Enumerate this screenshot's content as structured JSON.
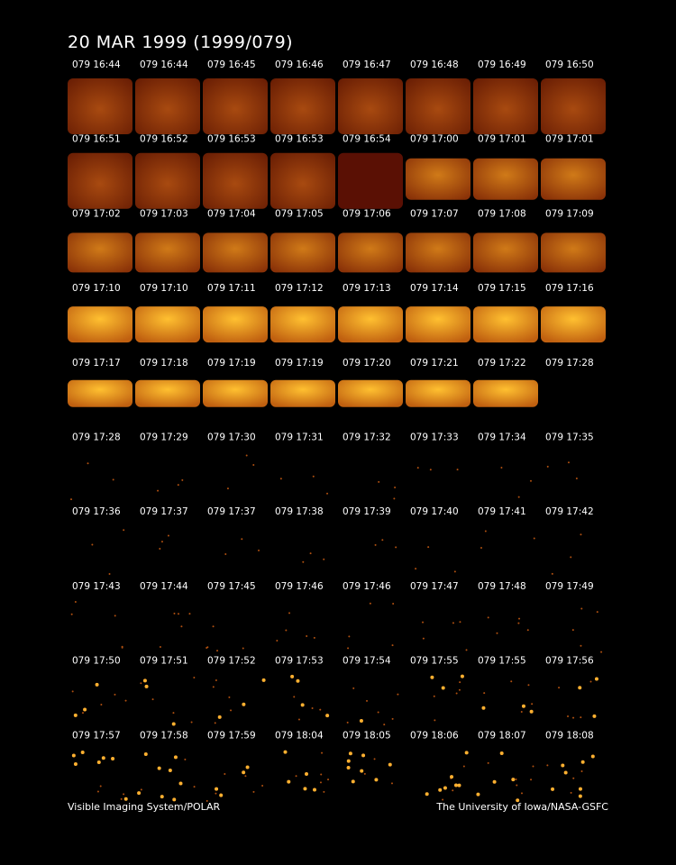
{
  "header": {
    "title": "20 MAR 1999  (1999/079)"
  },
  "panels": [
    [
      "079 16:44",
      "079 16:44",
      "079 16:45",
      "079 16:46",
      "079 16:47",
      "079 16:48",
      "079 16:49",
      "079 16:50"
    ],
    [
      "079 16:51",
      "079 16:52",
      "079 16:53",
      "079 16:53",
      "079 16:54",
      "079 17:00",
      "079 17:01",
      "079 17:01"
    ],
    [
      "079 17:02",
      "079 17:03",
      "079 17:04",
      "079 17:05",
      "079 17:06",
      "079 17:07",
      "079 17:08",
      "079 17:09"
    ],
    [
      "079 17:10",
      "079 17:10",
      "079 17:11",
      "079 17:12",
      "079 17:13",
      "079 17:14",
      "079 17:15",
      "079 17:16"
    ],
    [
      "079 17:17",
      "079 17:18",
      "079 17:19",
      "079 17:19",
      "079 17:20",
      "079 17:21",
      "079 17:22",
      "079 17:28"
    ],
    [
      "079 17:28",
      "079 17:29",
      "079 17:30",
      "079 17:31",
      "079 17:32",
      "079 17:33",
      "079 17:34",
      "079 17:35"
    ],
    [
      "079 17:36",
      "079 17:37",
      "079 17:37",
      "079 17:38",
      "079 17:39",
      "079 17:40",
      "079 17:41",
      "079 17:42"
    ],
    [
      "079 17:43",
      "079 17:44",
      "079 17:45",
      "079 17:46",
      "079 17:46",
      "079 17:47",
      "079 17:48",
      "079 17:49"
    ],
    [
      "079 17:50",
      "079 17:51",
      "079 17:52",
      "079 17:53",
      "079 17:54",
      "079 17:55",
      "079 17:55",
      "079 17:56"
    ],
    [
      "079 17:57",
      "079 17:58",
      "079 17:59",
      "079 18:04",
      "079 18:05",
      "079 18:06",
      "079 18:07",
      "079 18:08"
    ]
  ],
  "footer": {
    "left": "Visible Imaging System/POLAR",
    "right": "The University of Iowa/NASA-GSFC"
  }
}
